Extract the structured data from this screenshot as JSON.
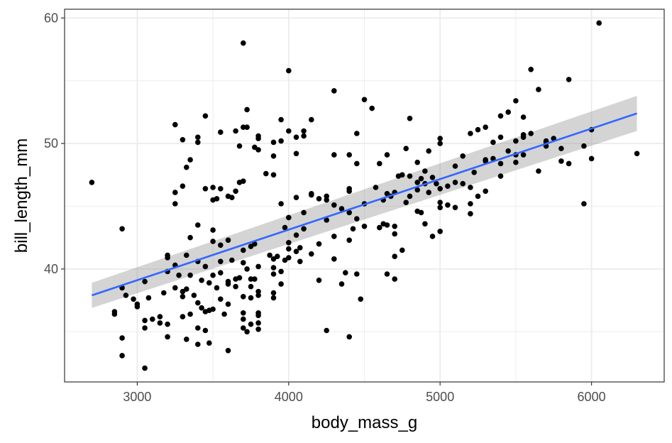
{
  "chart_data": {
    "type": "scatter",
    "title": "",
    "xlabel": "body_mass_g",
    "ylabel": "bill_length_mm",
    "xlim": [
      2520,
      6480
    ],
    "ylim": [
      31.0,
      60.7
    ],
    "x_ticks": [
      3000,
      4000,
      5000,
      6000
    ],
    "y_ticks": [
      40,
      50,
      60
    ],
    "x_tick_labels": [
      "3000",
      "4000",
      "5000",
      "6000"
    ],
    "y_tick_labels": [
      "40",
      "50",
      "60"
    ],
    "grid": true,
    "legend": "none",
    "colors": {
      "points": "#000000",
      "fit_line": "#3366ff",
      "ribbon": "#999999",
      "panel_border": "#333333",
      "grid": "#ebebeb"
    },
    "fit": {
      "type": "linear",
      "x": [
        2700,
        6300
      ],
      "y": [
        37.9,
        52.4
      ],
      "ribbon_lower": [
        36.9,
        51.0
      ],
      "ribbon_upper": [
        38.9,
        53.8
      ]
    },
    "points": [
      [
        2700,
        46.9
      ],
      [
        2850,
        36.6
      ],
      [
        2850,
        36.4
      ],
      [
        2900,
        43.2
      ],
      [
        2900,
        38.5
      ],
      [
        2900,
        34.5
      ],
      [
        2900,
        33.1
      ],
      [
        2925,
        37.9
      ],
      [
        2975,
        37.6
      ],
      [
        3000,
        37.0
      ],
      [
        3000,
        37.2
      ],
      [
        3050,
        35.9
      ],
      [
        3050,
        35.3
      ],
      [
        3050,
        32.1
      ],
      [
        3050,
        39.0
      ],
      [
        3075,
        37.7
      ],
      [
        3100,
        36.0
      ],
      [
        3150,
        36.2
      ],
      [
        3150,
        35.7
      ],
      [
        3175,
        38.1
      ],
      [
        3200,
        40.9
      ],
      [
        3200,
        39.8
      ],
      [
        3200,
        41.1
      ],
      [
        3200,
        35.6
      ],
      [
        3200,
        34.6
      ],
      [
        3250,
        38.5
      ],
      [
        3250,
        40.3
      ],
      [
        3250,
        46.1
      ],
      [
        3250,
        45.2
      ],
      [
        3250,
        51.5
      ],
      [
        3275,
        39.5
      ],
      [
        3300,
        38.2
      ],
      [
        3300,
        37.8
      ],
      [
        3300,
        36.2
      ],
      [
        3300,
        46.6
      ],
      [
        3300,
        50.3
      ],
      [
        3325,
        41.1
      ],
      [
        3325,
        38.4
      ],
      [
        3325,
        34.4
      ],
      [
        3325,
        48.1
      ],
      [
        3350,
        42.5
      ],
      [
        3350,
        36.4
      ],
      [
        3350,
        39.5
      ],
      [
        3350,
        48.7
      ],
      [
        3375,
        37.9
      ],
      [
        3400,
        40.6
      ],
      [
        3400,
        37.3
      ],
      [
        3400,
        35.3
      ],
      [
        3400,
        34.0
      ],
      [
        3400,
        43.5
      ],
      [
        3400,
        50.5
      ],
      [
        3400,
        50.1
      ],
      [
        3425,
        36.9
      ],
      [
        3425,
        39.1
      ],
      [
        3450,
        40.2
      ],
      [
        3450,
        36.6
      ],
      [
        3450,
        35.1
      ],
      [
        3450,
        46.4
      ],
      [
        3450,
        52.2
      ],
      [
        3475,
        38.9
      ],
      [
        3475,
        36.7
      ],
      [
        3475,
        34.1
      ],
      [
        3500,
        39.5
      ],
      [
        3500,
        42.2
      ],
      [
        3500,
        36.8
      ],
      [
        3500,
        43.1
      ],
      [
        3500,
        45.5
      ],
      [
        3500,
        46.5
      ],
      [
        3525,
        38.5
      ],
      [
        3525,
        45.6
      ],
      [
        3550,
        40.6
      ],
      [
        3550,
        41.9
      ],
      [
        3550,
        37.6
      ],
      [
        3550,
        50.9
      ],
      [
        3550,
        46.4
      ],
      [
        3550,
        39.7
      ],
      [
        3575,
        36.4
      ],
      [
        3600,
        38.8
      ],
      [
        3600,
        37.2
      ],
      [
        3600,
        45.8
      ],
      [
        3600,
        42.3
      ],
      [
        3600,
        33.5
      ],
      [
        3600,
        39.0
      ],
      [
        3625,
        40.7
      ],
      [
        3625,
        45.7
      ],
      [
        3650,
        39.2
      ],
      [
        3650,
        38.6
      ],
      [
        3650,
        46.2
      ],
      [
        3650,
        51.0
      ],
      [
        3675,
        39.3
      ],
      [
        3675,
        49.8
      ],
      [
        3675,
        46.9
      ],
      [
        3700,
        40.5
      ],
      [
        3700,
        36.0
      ],
      [
        3700,
        36.5
      ],
      [
        3700,
        41.5
      ],
      [
        3700,
        35.3
      ],
      [
        3700,
        37.8
      ],
      [
        3700,
        51.3
      ],
      [
        3700,
        58.0
      ],
      [
        3700,
        47.0
      ],
      [
        3725,
        40.0
      ],
      [
        3725,
        35.0
      ],
      [
        3725,
        51.3
      ],
      [
        3725,
        52.7
      ],
      [
        3750,
        38.6
      ],
      [
        3750,
        41.8
      ],
      [
        3750,
        39.2
      ],
      [
        3750,
        35.6
      ],
      [
        3750,
        37.7
      ],
      [
        3775,
        39.2
      ],
      [
        3775,
        42.0
      ],
      [
        3775,
        49.7
      ],
      [
        3800,
        38.2
      ],
      [
        3800,
        36.5
      ],
      [
        3800,
        36.3
      ],
      [
        3800,
        35.7
      ],
      [
        3800,
        35.2
      ],
      [
        3800,
        37.9
      ],
      [
        3800,
        40.2
      ],
      [
        3800,
        49.5
      ],
      [
        3800,
        50.4
      ],
      [
        3800,
        50.6
      ],
      [
        3850,
        47.6
      ],
      [
        3875,
        41.1
      ],
      [
        3900,
        39.6
      ],
      [
        3900,
        37.7
      ],
      [
        3900,
        38.1
      ],
      [
        3900,
        40.8
      ],
      [
        3900,
        40.1
      ],
      [
        3900,
        50.1
      ],
      [
        3900,
        49.0
      ],
      [
        3900,
        47.5
      ],
      [
        3925,
        41.0
      ],
      [
        3950,
        39.8
      ],
      [
        3950,
        38.8
      ],
      [
        3950,
        45.2
      ],
      [
        3950,
        50.2
      ],
      [
        3950,
        51.9
      ],
      [
        3975,
        40.7
      ],
      [
        3975,
        43.3
      ],
      [
        4000,
        40.9
      ],
      [
        4000,
        44.1
      ],
      [
        4000,
        42.1
      ],
      [
        4000,
        41.6
      ],
      [
        4000,
        55.8
      ],
      [
        4000,
        51.0
      ],
      [
        4050,
        42.7
      ],
      [
        4050,
        41.4
      ],
      [
        4050,
        50.5
      ],
      [
        4050,
        49.2
      ],
      [
        4050,
        45.7
      ],
      [
        4075,
        40.6
      ],
      [
        4075,
        41.7
      ],
      [
        4100,
        44.5
      ],
      [
        4100,
        43.2
      ],
      [
        4100,
        51.0
      ],
      [
        4100,
        50.6
      ],
      [
        4150,
        41.2
      ],
      [
        4150,
        45.9
      ],
      [
        4150,
        51.9
      ],
      [
        4150,
        46.0
      ],
      [
        4200,
        42.0
      ],
      [
        4200,
        39.1
      ],
      [
        4200,
        45.6
      ],
      [
        4250,
        35.1
      ],
      [
        4250,
        43.9
      ],
      [
        4250,
        45.5
      ],
      [
        4250,
        45.8
      ],
      [
        4300,
        42.6
      ],
      [
        4300,
        45.1
      ],
      [
        4300,
        49.1
      ],
      [
        4300,
        54.2
      ],
      [
        4300,
        40.8
      ],
      [
        4350,
        44.8
      ],
      [
        4350,
        38.8
      ],
      [
        4375,
        39.7
      ],
      [
        4400,
        46.2
      ],
      [
        4400,
        44.5
      ],
      [
        4400,
        42.3
      ],
      [
        4400,
        34.6
      ],
      [
        4400,
        49.1
      ],
      [
        4400,
        46.4
      ],
      [
        4425,
        43.2
      ],
      [
        4450,
        48.4
      ],
      [
        4450,
        44.0
      ],
      [
        4450,
        50.8
      ],
      [
        4450,
        39.6
      ],
      [
        4475,
        37.6
      ],
      [
        4500,
        43.4
      ],
      [
        4500,
        53.5
      ],
      [
        4500,
        45.2
      ],
      [
        4550,
        52.8
      ],
      [
        4575,
        46.5
      ],
      [
        4600,
        43.3
      ],
      [
        4600,
        48.4
      ],
      [
        4625,
        43.6
      ],
      [
        4625,
        45.5
      ],
      [
        4650,
        46.0
      ],
      [
        4650,
        43.5
      ],
      [
        4650,
        39.6
      ],
      [
        4650,
        49.1
      ],
      [
        4675,
        45.8
      ],
      [
        4700,
        41.0
      ],
      [
        4700,
        43.4
      ],
      [
        4700,
        39.2
      ],
      [
        4700,
        42.8
      ],
      [
        4700,
        46.1
      ],
      [
        4725,
        47.4
      ],
      [
        4750,
        47.5
      ],
      [
        4750,
        41.5
      ],
      [
        4775,
        45.3
      ],
      [
        4775,
        49.6
      ],
      [
        4800,
        47.4
      ],
      [
        4800,
        45.8
      ],
      [
        4800,
        52.0
      ],
      [
        4850,
        46.3
      ],
      [
        4850,
        48.5
      ],
      [
        4850,
        44.6
      ],
      [
        4850,
        46.9
      ],
      [
        4875,
        44.5
      ],
      [
        4875,
        47.2
      ],
      [
        4900,
        46.8
      ],
      [
        4900,
        43.6
      ],
      [
        4900,
        47.8
      ],
      [
        4925,
        46.1
      ],
      [
        4925,
        49.4
      ],
      [
        4950,
        47.3
      ],
      [
        4950,
        42.6
      ],
      [
        4975,
        46.8
      ],
      [
        5000,
        50.4
      ],
      [
        5000,
        50.0
      ],
      [
        5000,
        45.3
      ],
      [
        5000,
        46.4
      ],
      [
        5000,
        43.0
      ],
      [
        5000,
        44.9
      ],
      [
        5050,
        46.6
      ],
      [
        5050,
        45.1
      ],
      [
        5100,
        46.9
      ],
      [
        5100,
        48.2
      ],
      [
        5100,
        44.9
      ],
      [
        5150,
        49.0
      ],
      [
        5150,
        46.8
      ],
      [
        5200,
        45.2
      ],
      [
        5200,
        50.8
      ],
      [
        5200,
        46.5
      ],
      [
        5200,
        44.4
      ],
      [
        5225,
        47.7
      ],
      [
        5250,
        51.1
      ],
      [
        5250,
        45.8
      ],
      [
        5300,
        48.7
      ],
      [
        5300,
        51.3
      ],
      [
        5300,
        46.2
      ],
      [
        5300,
        48.6
      ],
      [
        5350,
        48.8
      ],
      [
        5350,
        50.1
      ],
      [
        5400,
        47.4
      ],
      [
        5400,
        52.2
      ],
      [
        5400,
        50.5
      ],
      [
        5400,
        48.4
      ],
      [
        5450,
        52.5
      ],
      [
        5450,
        49.4
      ],
      [
        5500,
        53.4
      ],
      [
        5500,
        49.1
      ],
      [
        5500,
        48.5
      ],
      [
        5500,
        50.2
      ],
      [
        5550,
        50.5
      ],
      [
        5550,
        52.1
      ],
      [
        5550,
        49.1
      ],
      [
        5550,
        50.7
      ],
      [
        5600,
        55.9
      ],
      [
        5600,
        50.8
      ],
      [
        5650,
        54.3
      ],
      [
        5650,
        47.8
      ],
      [
        5700,
        50.1
      ],
      [
        5700,
        49.8
      ],
      [
        5700,
        50.2
      ],
      [
        5750,
        50.4
      ],
      [
        5800,
        48.6
      ],
      [
        5800,
        49.6
      ],
      [
        5850,
        55.1
      ],
      [
        5850,
        48.4
      ],
      [
        5950,
        45.2
      ],
      [
        5950,
        49.8
      ],
      [
        6000,
        51.1
      ],
      [
        6000,
        48.8
      ],
      [
        6050,
        59.6
      ],
      [
        6300,
        49.2
      ]
    ]
  }
}
